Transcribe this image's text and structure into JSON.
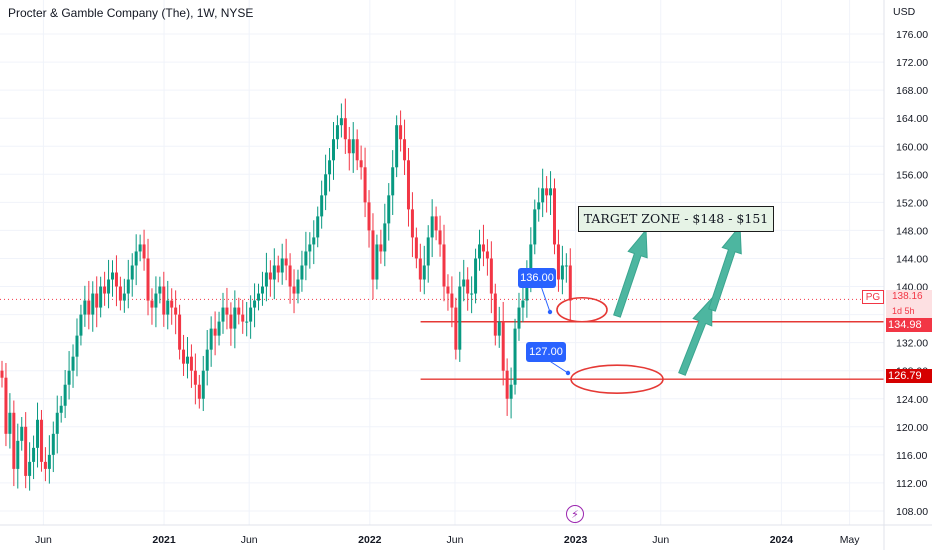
{
  "header": {
    "title": "Procter & Gamble Company (The), 1W, NYSE"
  },
  "currency": "USD",
  "colors": {
    "up": "#089981",
    "down": "#f23645",
    "level": "#e53935",
    "arrow": "#4db6a0",
    "bubble": "#2962ff"
  },
  "chart_data": {
    "type": "candlestick",
    "title": "Procter & Gamble Company (The), 1W, NYSE",
    "ylabel": "USD",
    "ylim": [
      106,
      178
    ],
    "y_ticks": [
      "108.00",
      "112.00",
      "116.00",
      "120.00",
      "124.00",
      "128.00",
      "132.00",
      "136.00",
      "140.00",
      "144.00",
      "148.00",
      "152.00",
      "156.00",
      "160.00",
      "164.00",
      "168.00",
      "172.00",
      "176.00"
    ],
    "x_ticks": [
      "Jun",
      "2021",
      "Jun",
      "2022",
      "Jun",
      "2023",
      "Jun",
      "2024",
      "May"
    ],
    "x_range": [
      "2020-03-16",
      "2024-07-01"
    ],
    "x_tick_dates": [
      "2020-06-01",
      "2021-01-01",
      "2021-06-01",
      "2022-01-01",
      "2022-06-01",
      "2023-01-01",
      "2023-06-01",
      "2024-01-01",
      "2024-05-01"
    ],
    "closes": [
      127,
      119,
      122,
      114,
      118,
      120,
      113,
      115,
      117,
      121,
      115,
      114,
      116,
      119,
      122,
      123,
      126,
      128,
      130,
      133,
      136,
      138,
      136,
      139,
      137,
      140,
      139,
      141,
      142,
      140,
      138,
      139,
      141,
      143,
      145,
      146,
      144,
      138,
      137,
      139,
      140,
      136,
      138,
      137,
      136,
      131,
      129,
      130,
      128,
      126,
      124,
      128,
      131,
      134,
      133,
      135,
      137,
      136,
      134,
      137,
      136,
      135,
      135,
      137,
      138,
      139,
      140,
      142,
      141,
      143,
      142,
      144,
      143,
      140,
      139,
      141,
      143,
      145,
      146,
      147,
      150,
      153,
      156,
      158,
      161,
      163,
      164,
      161,
      159,
      161,
      158,
      157,
      152,
      148,
      141,
      146,
      145,
      149,
      153,
      157,
      163,
      161,
      158,
      151,
      147,
      144,
      141,
      143,
      147,
      150,
      148,
      146,
      140,
      139,
      137,
      131,
      140,
      141,
      139,
      139,
      144,
      146,
      145,
      144,
      139,
      133,
      135,
      128,
      124,
      126,
      134,
      137,
      138,
      142,
      146,
      151,
      152,
      154,
      153,
      154,
      146,
      141,
      143,
      143,
      138
    ],
    "last_price": {
      "value": "138.16",
      "countdown": "1d 5h",
      "symbol": "PG"
    },
    "levels": [
      {
        "price": 134.98,
        "label": "134.98",
        "start": "2022-04-01"
      },
      {
        "price": 126.79,
        "label": "126.79",
        "start": "2022-04-01"
      }
    ],
    "annotations": {
      "target_zone": "TARGET ZONE - $148 - $151",
      "callout_1": "136.00",
      "callout_2": "127.00"
    }
  }
}
